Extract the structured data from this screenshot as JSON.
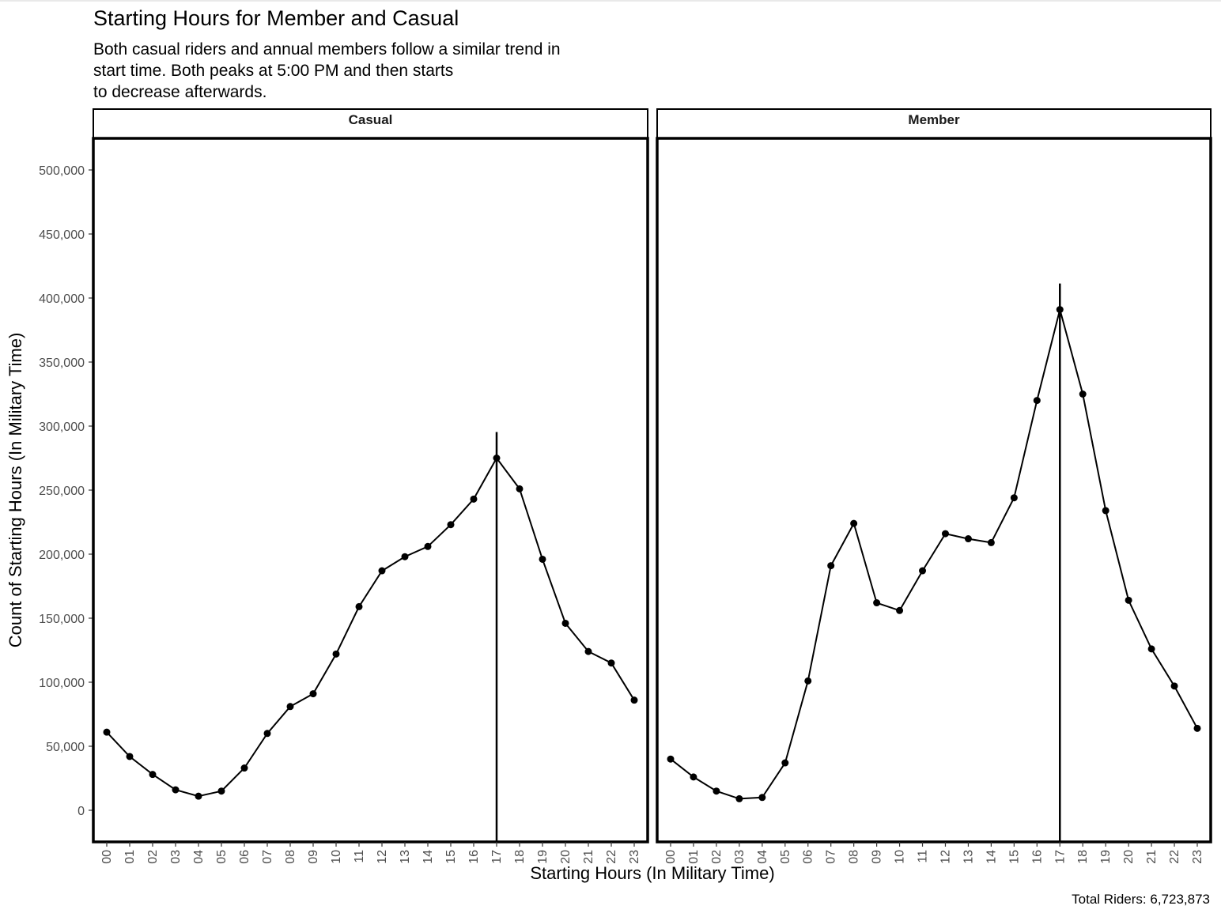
{
  "title": "Starting Hours for Member and Casual",
  "subtitle_lines": [
    "Both casual riders and annual members follow a similar trend in",
    "start time. Both peaks at 5:00 PM and then starts",
    "to decrease afterwards."
  ],
  "caption": "Total Riders:  6,723,873",
  "colors": {
    "line": "#000000",
    "panel_border": "#000000",
    "tick_text": "#4d4d4d",
    "background": "#ffffff"
  },
  "chart_data": {
    "type": "line",
    "xlabel": "Starting Hours (In Military Time)",
    "ylabel": "Count of Starting Hours (In Military Time)",
    "ylim": [
      -25000,
      525000
    ],
    "y_ticks": [
      0,
      50000,
      100000,
      150000,
      200000,
      250000,
      300000,
      350000,
      400000,
      450000,
      500000
    ],
    "y_tick_labels": [
      "0",
      "50,000",
      "100,000",
      "150,000",
      "200,000",
      "250,000",
      "300,000",
      "350,000",
      "400,000",
      "450,000",
      "500,000"
    ],
    "x": [
      "00",
      "01",
      "02",
      "03",
      "04",
      "05",
      "06",
      "07",
      "08",
      "09",
      "10",
      "11",
      "12",
      "13",
      "14",
      "15",
      "16",
      "17",
      "18",
      "19",
      "20",
      "21",
      "22",
      "23"
    ],
    "grid": false,
    "peak_marker": {
      "type": "vertical-line",
      "x": "17"
    },
    "facets": [
      {
        "name": "Casual",
        "values": [
          61000,
          42000,
          28000,
          16000,
          11000,
          15000,
          33000,
          60000,
          81000,
          91000,
          122000,
          159000,
          187000,
          198000,
          206000,
          223000,
          243000,
          275000,
          251000,
          196000,
          146000,
          124000,
          115000,
          86000
        ]
      },
      {
        "name": "Member",
        "values": [
          40000,
          26000,
          15000,
          9000,
          10000,
          37000,
          101000,
          191000,
          224000,
          162000,
          156000,
          187000,
          216000,
          212000,
          209000,
          244000,
          320000,
          391000,
          325000,
          234000,
          164000,
          126000,
          97000,
          64000
        ]
      }
    ]
  }
}
